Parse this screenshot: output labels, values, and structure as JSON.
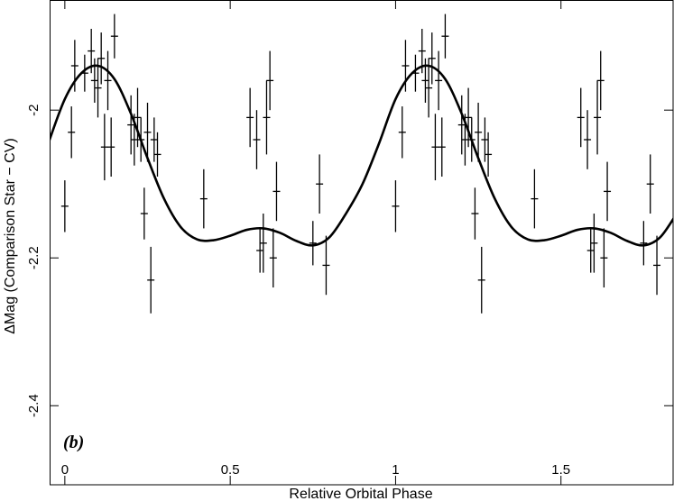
{
  "chart_data": {
    "type": "scatter",
    "xlabel": "Relative Orbital Phase",
    "ylabel": "ΔMag (Comparison Star − CV)",
    "annotation": "(b)",
    "xlim": [
      -0.046,
      1.839
    ],
    "ylim": [
      -2.507,
      -1.851
    ],
    "xticks": [
      0,
      0.5,
      1,
      1.5
    ],
    "yticks": [
      -2,
      -2.2,
      -2.4
    ],
    "color": "#000000",
    "points": {
      "x": [
        0.0,
        0.02,
        0.03,
        0.06,
        0.08,
        0.09,
        0.1,
        0.11,
        0.12,
        0.13,
        0.15,
        0.14,
        0.2,
        0.21,
        0.22,
        0.23,
        0.24,
        0.25,
        0.26,
        0.27,
        0.28,
        0.42,
        0.56,
        0.58,
        0.59,
        0.6,
        0.61,
        0.62,
        0.63,
        0.64,
        0.75,
        0.77,
        0.79,
        1.0,
        1.02,
        1.03,
        1.06,
        1.08,
        1.09,
        1.1,
        1.11,
        1.12,
        1.13,
        1.15,
        1.14,
        1.2,
        1.21,
        1.22,
        1.23,
        1.24,
        1.25,
        1.26,
        1.27,
        1.28,
        1.42,
        1.56,
        1.58,
        1.59,
        1.6,
        1.61,
        1.62,
        1.63,
        1.64,
        1.75,
        1.77,
        1.79
      ],
      "values": [
        -2.13,
        -2.03,
        -1.94,
        -1.95,
        -1.92,
        -1.96,
        -1.97,
        -1.93,
        -2.05,
        -1.96,
        -1.9,
        -2.05,
        -2.02,
        -2.04,
        -2.01,
        -2.04,
        -2.14,
        -2.03,
        -2.23,
        -2.04,
        -2.06,
        -2.12,
        -2.01,
        -2.04,
        -2.19,
        -2.18,
        -2.01,
        -1.96,
        -2.2,
        -2.11,
        -2.18,
        -2.1,
        -2.21,
        -2.13,
        -2.03,
        -1.94,
        -1.95,
        -1.92,
        -1.96,
        -1.97,
        -1.93,
        -2.05,
        -1.96,
        -1.9,
        -2.05,
        -2.02,
        -2.04,
        -2.01,
        -2.04,
        -2.14,
        -2.03,
        -2.23,
        -2.04,
        -2.06,
        -2.12,
        -2.01,
        -2.04,
        -2.19,
        -2.18,
        -2.01,
        -1.96,
        -2.2,
        -2.11,
        -2.18,
        -2.1,
        -2.21
      ],
      "errors": [
        0.035,
        0.035,
        0.035,
        0.025,
        0.03,
        0.03,
        0.04,
        0.035,
        0.045,
        0.04,
        0.03,
        0.04,
        0.04,
        0.035,
        0.04,
        0.03,
        0.035,
        0.04,
        0.045,
        0.03,
        0.03,
        0.04,
        0.04,
        0.04,
        0.03,
        0.04,
        0.05,
        0.04,
        0.04,
        0.04,
        0.03,
        0.04,
        0.04,
        0.035,
        0.035,
        0.035,
        0.025,
        0.03,
        0.03,
        0.04,
        0.035,
        0.045,
        0.04,
        0.03,
        0.04,
        0.04,
        0.035,
        0.04,
        0.03,
        0.035,
        0.04,
        0.045,
        0.03,
        0.03,
        0.04,
        0.04,
        0.04,
        0.03,
        0.04,
        0.05,
        0.04,
        0.04,
        0.04,
        0.03,
        0.04,
        0.04
      ]
    },
    "model": {
      "x": [
        -0.05,
        0.0,
        0.05,
        0.1,
        0.15,
        0.2,
        0.25,
        0.3,
        0.35,
        0.4,
        0.45,
        0.5,
        0.55,
        0.6,
        0.65,
        0.7,
        0.75,
        0.8,
        0.85,
        0.9,
        0.95,
        1.0,
        1.05,
        1.1,
        1.15,
        1.2,
        1.25,
        1.3,
        1.35,
        1.4,
        1.45,
        1.5,
        1.55,
        1.6,
        1.65,
        1.7,
        1.75,
        1.8,
        1.85
      ],
      "values": [
        -2.045,
        -1.985,
        -1.95,
        -1.94,
        -1.958,
        -2.005,
        -2.065,
        -2.12,
        -2.158,
        -2.175,
        -2.176,
        -2.17,
        -2.162,
        -2.16,
        -2.166,
        -2.177,
        -2.183,
        -2.172,
        -2.14,
        -2.1,
        -2.045,
        -1.985,
        -1.95,
        -1.94,
        -1.958,
        -2.005,
        -2.065,
        -2.12,
        -2.158,
        -2.175,
        -2.176,
        -2.17,
        -2.162,
        -2.16,
        -2.166,
        -2.177,
        -2.183,
        -2.172,
        -2.14
      ]
    }
  }
}
